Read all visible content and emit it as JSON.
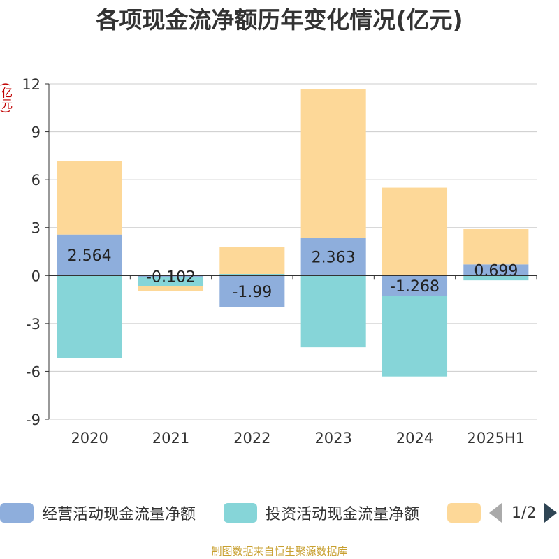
{
  "title": "各项现金流净额历年变化情况(亿元)",
  "unit_label": "(亿元)",
  "footer": "制图数据来自恒生聚源数据库",
  "legend": {
    "items": [
      {
        "label": "经营活动现金流量净额",
        "color": "#8eaedc"
      },
      {
        "label": "投资活动现金流量净额",
        "color": "#86d5d8"
      },
      {
        "label": "",
        "color": "#fdd898"
      }
    ],
    "page": "1/2"
  },
  "chart_data": {
    "type": "bar",
    "stacked": true,
    "categories": [
      "2020",
      "2021",
      "2022",
      "2023",
      "2024",
      "2025H1"
    ],
    "ylim": [
      -9,
      12
    ],
    "yticks": [
      -9,
      -6,
      -3,
      0,
      3,
      6,
      9,
      12
    ],
    "grid": true,
    "series": [
      {
        "name": "经营活动现金流量净额",
        "color": "#8eaedc",
        "values": [
          2.564,
          -0.102,
          -1.99,
          2.363,
          -1.268,
          0.699
        ]
      },
      {
        "name": "投资活动现金流量净额",
        "color": "#86d5d8",
        "values": [
          -5.15,
          -0.55,
          0.1,
          -4.5,
          -5.05,
          -0.3
        ]
      },
      {
        "color": "#fdd898",
        "values": [
          4.6,
          -0.3,
          1.7,
          9.3,
          5.5,
          2.2
        ]
      }
    ],
    "data_labels": [
      "2.564",
      "-0.102",
      "-1.99",
      "2.363",
      "-1.268",
      "0.699"
    ]
  }
}
